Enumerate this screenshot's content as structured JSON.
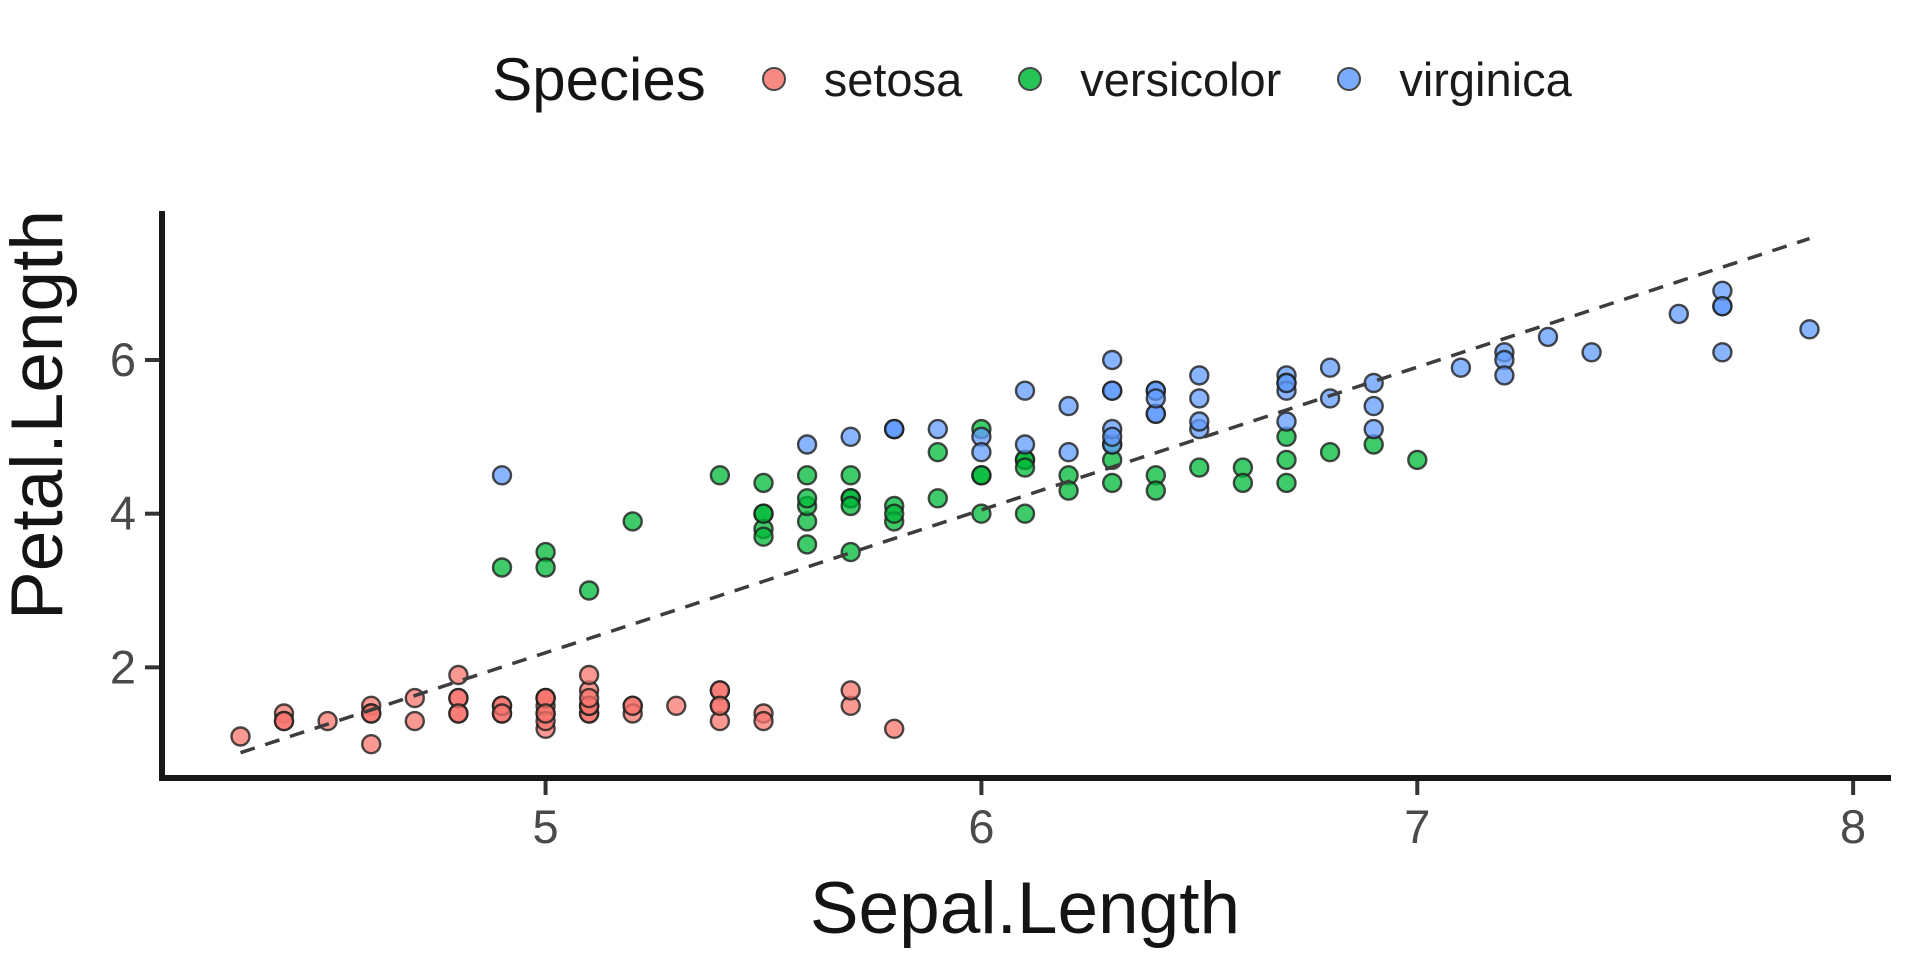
{
  "chart_data": {
    "type": "scatter",
    "xlabel": "Sepal.Length",
    "ylabel": "Petal.Length",
    "legend": {
      "title": "Species",
      "position": "top"
    },
    "x_ticks": [
      5,
      6,
      7,
      8
    ],
    "y_ticks": [
      2,
      4,
      6
    ],
    "x_domain": [
      4.12,
      8.08
    ],
    "y_domain": [
      0.56,
      7.9
    ],
    "grid": false,
    "point_alpha": 0.75,
    "point_stroke": "#1e1e1e",
    "trend_line": {
      "style": "dashed",
      "color": "#3d3d3d",
      "slope": 1.8584,
      "intercept": -7.1014,
      "x_start": 4.3,
      "x_end": 7.9
    },
    "series": [
      {
        "name": "setosa",
        "color": "#F8766D",
        "points": [
          [
            5.1,
            1.4
          ],
          [
            4.9,
            1.4
          ],
          [
            4.7,
            1.3
          ],
          [
            4.6,
            1.5
          ],
          [
            5.0,
            1.4
          ],
          [
            5.4,
            1.7
          ],
          [
            4.6,
            1.4
          ],
          [
            5.0,
            1.5
          ],
          [
            4.4,
            1.4
          ],
          [
            4.9,
            1.5
          ],
          [
            5.4,
            1.5
          ],
          [
            4.8,
            1.6
          ],
          [
            4.8,
            1.4
          ],
          [
            4.3,
            1.1
          ],
          [
            5.8,
            1.2
          ],
          [
            5.7,
            1.5
          ],
          [
            5.4,
            1.3
          ],
          [
            5.1,
            1.4
          ],
          [
            5.7,
            1.7
          ],
          [
            5.1,
            1.5
          ],
          [
            5.4,
            1.7
          ],
          [
            5.1,
            1.5
          ],
          [
            4.6,
            1.0
          ],
          [
            5.1,
            1.7
          ],
          [
            4.8,
            1.9
          ],
          [
            5.0,
            1.6
          ],
          [
            5.0,
            1.6
          ],
          [
            5.2,
            1.5
          ],
          [
            5.2,
            1.4
          ],
          [
            4.7,
            1.6
          ],
          [
            4.8,
            1.6
          ],
          [
            5.4,
            1.5
          ],
          [
            5.2,
            1.5
          ],
          [
            5.5,
            1.4
          ],
          [
            4.9,
            1.5
          ],
          [
            5.0,
            1.2
          ],
          [
            5.5,
            1.3
          ],
          [
            4.9,
            1.4
          ],
          [
            4.4,
            1.3
          ],
          [
            5.1,
            1.5
          ],
          [
            5.0,
            1.3
          ],
          [
            4.5,
            1.3
          ],
          [
            4.4,
            1.3
          ],
          [
            5.0,
            1.6
          ],
          [
            5.1,
            1.9
          ],
          [
            4.8,
            1.4
          ],
          [
            5.1,
            1.6
          ],
          [
            4.6,
            1.4
          ],
          [
            5.3,
            1.5
          ],
          [
            5.0,
            1.4
          ]
        ]
      },
      {
        "name": "versicolor",
        "color": "#00BA38",
        "points": [
          [
            7.0,
            4.7
          ],
          [
            6.4,
            4.5
          ],
          [
            6.9,
            4.9
          ],
          [
            5.5,
            4.0
          ],
          [
            6.5,
            4.6
          ],
          [
            5.7,
            4.5
          ],
          [
            6.3,
            4.7
          ],
          [
            4.9,
            3.3
          ],
          [
            6.6,
            4.6
          ],
          [
            5.2,
            3.9
          ],
          [
            5.0,
            3.5
          ],
          [
            5.9,
            4.2
          ],
          [
            6.0,
            4.0
          ],
          [
            6.1,
            4.7
          ],
          [
            5.6,
            3.6
          ],
          [
            6.7,
            4.4
          ],
          [
            5.6,
            4.5
          ],
          [
            5.8,
            4.1
          ],
          [
            6.2,
            4.5
          ],
          [
            5.6,
            3.9
          ],
          [
            5.9,
            4.8
          ],
          [
            6.1,
            4.0
          ],
          [
            6.3,
            4.9
          ],
          [
            6.1,
            4.7
          ],
          [
            6.4,
            4.3
          ],
          [
            6.6,
            4.4
          ],
          [
            6.8,
            4.8
          ],
          [
            6.7,
            5.0
          ],
          [
            6.0,
            4.5
          ],
          [
            5.7,
            3.5
          ],
          [
            5.5,
            3.8
          ],
          [
            5.5,
            3.7
          ],
          [
            5.8,
            3.9
          ],
          [
            6.0,
            5.1
          ],
          [
            5.4,
            4.5
          ],
          [
            6.0,
            4.5
          ],
          [
            6.7,
            4.7
          ],
          [
            6.3,
            4.4
          ],
          [
            5.6,
            4.1
          ],
          [
            5.5,
            4.0
          ],
          [
            5.5,
            4.4
          ],
          [
            6.1,
            4.6
          ],
          [
            5.8,
            4.0
          ],
          [
            5.0,
            3.3
          ],
          [
            5.6,
            4.2
          ],
          [
            5.7,
            4.2
          ],
          [
            5.7,
            4.2
          ],
          [
            6.2,
            4.3
          ],
          [
            5.1,
            3.0
          ],
          [
            5.7,
            4.1
          ]
        ]
      },
      {
        "name": "virginica",
        "color": "#619CFF",
        "points": [
          [
            6.3,
            6.0
          ],
          [
            5.8,
            5.1
          ],
          [
            7.1,
            5.9
          ],
          [
            6.3,
            5.6
          ],
          [
            6.5,
            5.8
          ],
          [
            7.6,
            6.6
          ],
          [
            4.9,
            4.5
          ],
          [
            7.3,
            6.3
          ],
          [
            6.7,
            5.8
          ],
          [
            7.2,
            6.1
          ],
          [
            6.5,
            5.1
          ],
          [
            6.4,
            5.3
          ],
          [
            6.8,
            5.5
          ],
          [
            5.7,
            5.0
          ],
          [
            5.8,
            5.1
          ],
          [
            6.4,
            5.3
          ],
          [
            6.5,
            5.5
          ],
          [
            7.7,
            6.7
          ],
          [
            7.7,
            6.9
          ],
          [
            6.0,
            5.0
          ],
          [
            6.9,
            5.7
          ],
          [
            5.6,
            4.9
          ],
          [
            7.7,
            6.7
          ],
          [
            6.3,
            4.9
          ],
          [
            6.7,
            5.7
          ],
          [
            7.2,
            6.0
          ],
          [
            6.2,
            4.8
          ],
          [
            6.1,
            4.9
          ],
          [
            6.4,
            5.6
          ],
          [
            7.2,
            5.8
          ],
          [
            7.4,
            6.1
          ],
          [
            7.9,
            6.4
          ],
          [
            6.4,
            5.6
          ],
          [
            6.3,
            5.1
          ],
          [
            6.1,
            5.6
          ],
          [
            7.7,
            6.1
          ],
          [
            6.3,
            5.6
          ],
          [
            6.4,
            5.5
          ],
          [
            6.0,
            4.8
          ],
          [
            6.9,
            5.4
          ],
          [
            6.7,
            5.6
          ],
          [
            6.9,
            5.1
          ],
          [
            5.8,
            5.1
          ],
          [
            6.8,
            5.9
          ],
          [
            6.7,
            5.7
          ],
          [
            6.7,
            5.2
          ],
          [
            6.3,
            5.0
          ],
          [
            6.5,
            5.2
          ],
          [
            6.2,
            5.4
          ],
          [
            5.9,
            5.1
          ]
        ]
      }
    ]
  }
}
